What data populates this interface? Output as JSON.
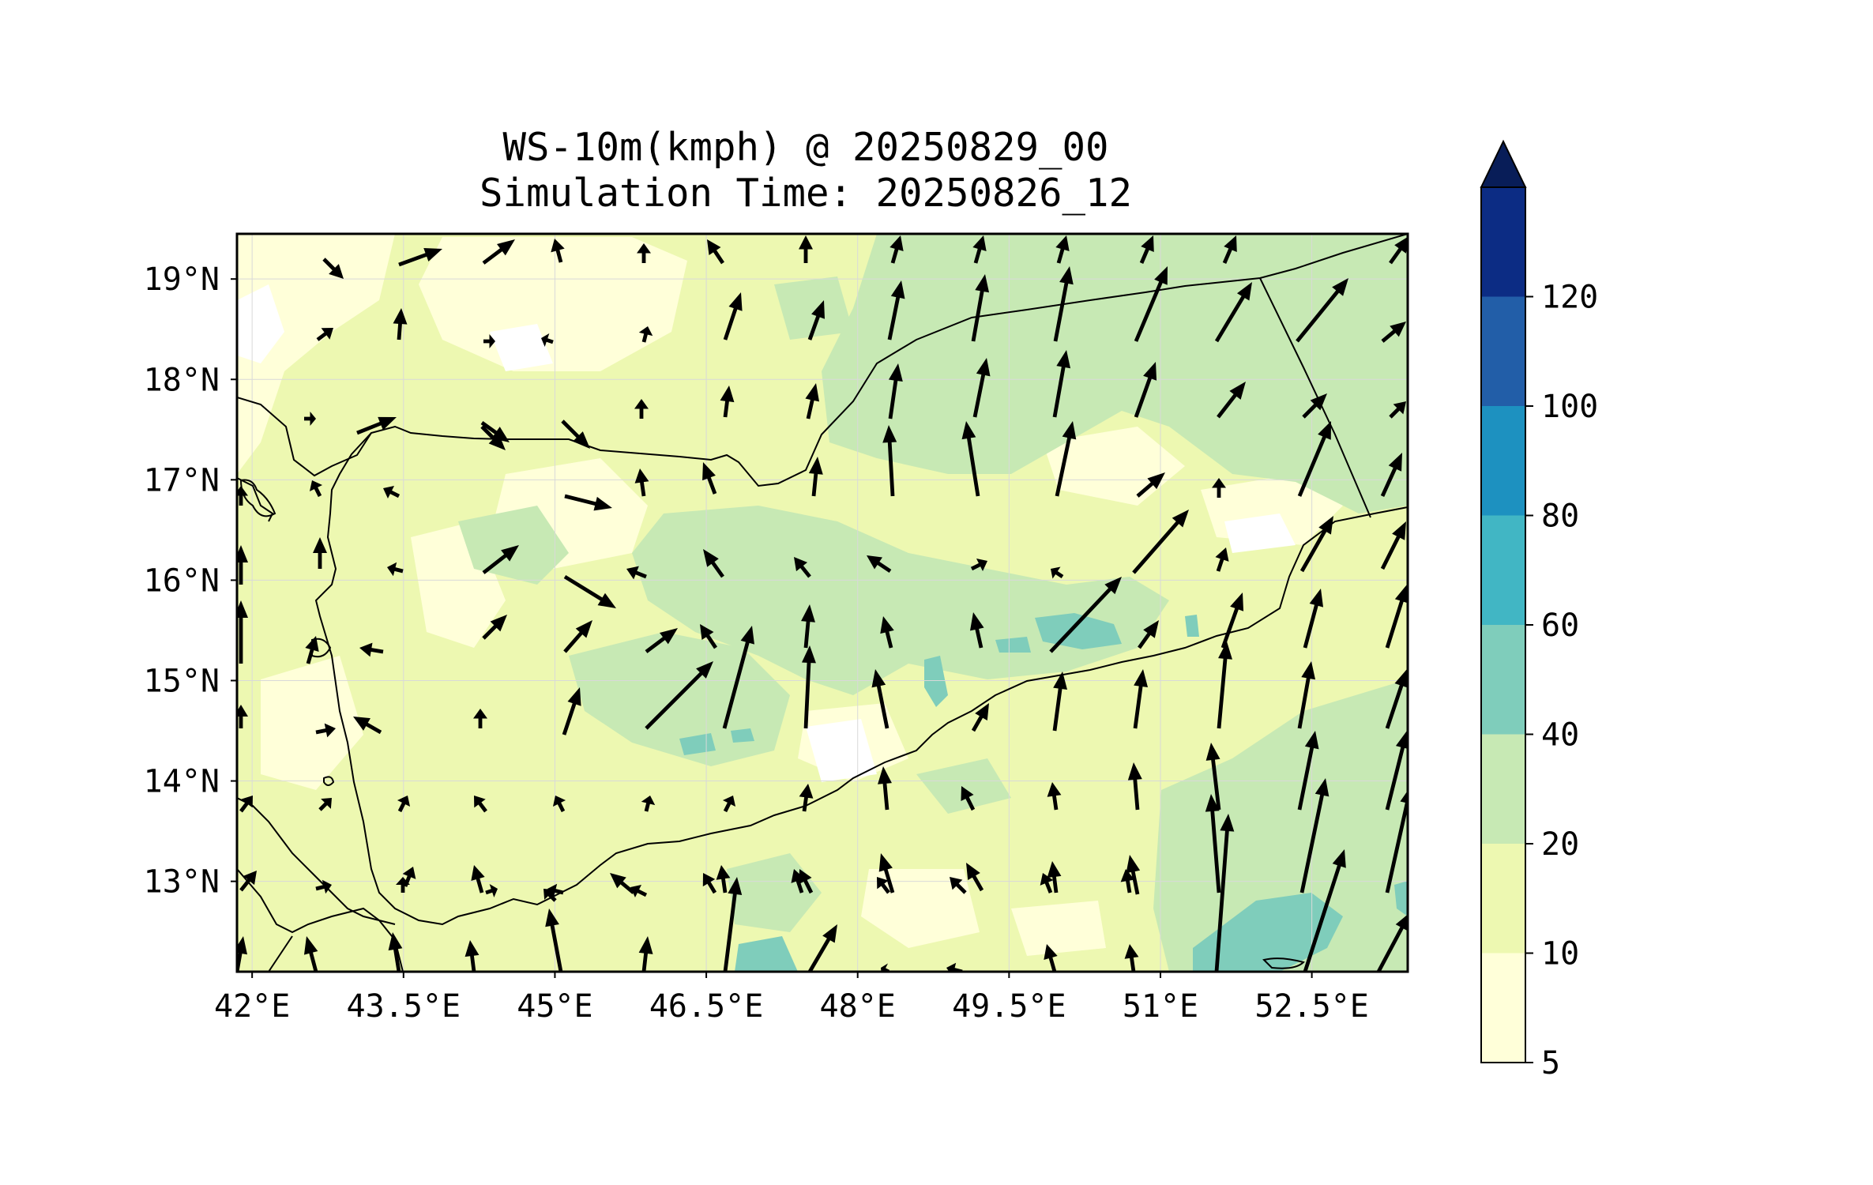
{
  "title": {
    "line1": "WS-10m(kmph) @ 20250829_00",
    "line2": "Simulation Time: 20250826_12"
  },
  "map": {
    "lon_range": [
      41.85,
      53.45
    ],
    "lat_range": [
      12.1,
      19.45
    ],
    "x_ticks": [
      {
        "value": 42,
        "label": "42°E"
      },
      {
        "value": 43.5,
        "label": "43.5°E"
      },
      {
        "value": 45,
        "label": "45°E"
      },
      {
        "value": 46.5,
        "label": "46.5°E"
      },
      {
        "value": 48,
        "label": "48°E"
      },
      {
        "value": 49.5,
        "label": "49.5°E"
      },
      {
        "value": 51,
        "label": "51°E"
      },
      {
        "value": 52.5,
        "label": "52.5°E"
      }
    ],
    "y_ticks": [
      {
        "value": 19,
        "label": "19°N"
      },
      {
        "value": 18,
        "label": "18°N"
      },
      {
        "value": 17,
        "label": "17°N"
      },
      {
        "value": 16,
        "label": "16°N"
      },
      {
        "value": 15,
        "label": "15°N"
      },
      {
        "value": 14,
        "label": "14°N"
      },
      {
        "value": 13,
        "label": "13°N"
      }
    ],
    "grid": true
  },
  "colorbar": {
    "levels": [
      "5",
      "10",
      "20",
      "40",
      "60",
      "80",
      "100",
      "120"
    ],
    "colors": [
      "#ffffd9",
      "#edf8b1",
      "#c7e9b4",
      "#7fcdbb",
      "#41b6c4",
      "#1d91c0",
      "#225ea8",
      "#0c2c84"
    ],
    "extend_color": "#081d58",
    "extend": "max"
  },
  "colors": {
    "frame": "#000000",
    "coast": "#000000",
    "arrow": "#000000"
  }
}
